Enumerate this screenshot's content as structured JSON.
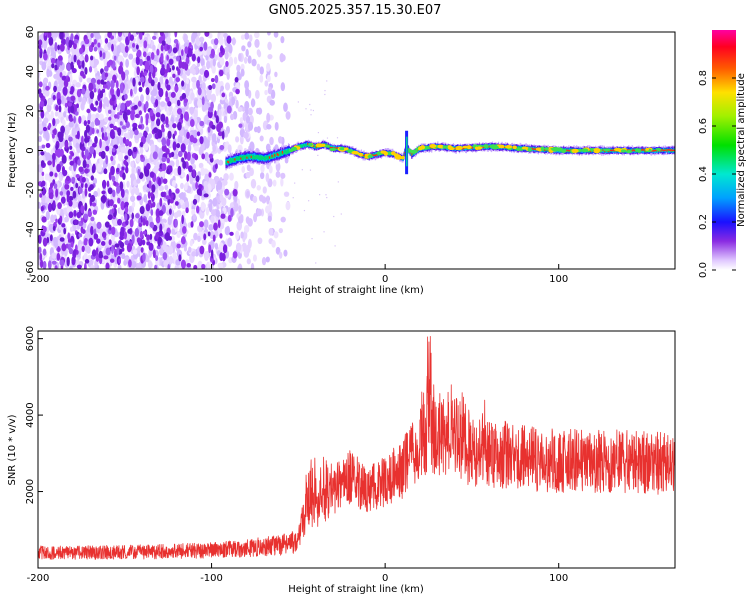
{
  "title": "GN05.2025.357.15.30.E07",
  "chart_data": [
    {
      "type": "heatmap",
      "title": "GN05.2025.357.15.30.E07",
      "xlabel": "Height of straight line (km)",
      "ylabel": "Frequency (Hz)",
      "xlim": [
        -200,
        167
      ],
      "ylim": [
        -60,
        60
      ],
      "x_ticks": [
        "-200",
        "-100",
        "0",
        "100"
      ],
      "y_ticks": [
        "60",
        "40",
        "20",
        "0",
        "-20",
        "-40",
        "-60"
      ],
      "colorbar": {
        "label": "Normalized spectral amplitude",
        "range": [
          0,
          1
        ],
        "ticks": [
          "0.0",
          "0.2",
          "0.4",
          "0.6",
          "0.8"
        ]
      },
      "noise_region_x": [
        -200,
        -55
      ],
      "signal_start_x": -92,
      "signal_track": [
        {
          "x": -92,
          "y": -6
        },
        {
          "x": -85,
          "y": -4
        },
        {
          "x": -78,
          "y": -3
        },
        {
          "x": -70,
          "y": -4
        },
        {
          "x": -62,
          "y": -2
        },
        {
          "x": -55,
          "y": 0
        },
        {
          "x": -50,
          "y": 2
        },
        {
          "x": -45,
          "y": 3
        },
        {
          "x": -40,
          "y": 2
        },
        {
          "x": -35,
          "y": 3
        },
        {
          "x": -30,
          "y": 1
        },
        {
          "x": -25,
          "y": 1
        },
        {
          "x": -20,
          "y": 0
        },
        {
          "x": -15,
          "y": -2
        },
        {
          "x": -10,
          "y": -3
        },
        {
          "x": -5,
          "y": -2
        },
        {
          "x": 0,
          "y": -1
        },
        {
          "x": 5,
          "y": -2
        },
        {
          "x": 10,
          "y": -4
        },
        {
          "x": 12,
          "y": 2
        },
        {
          "x": 15,
          "y": -2
        },
        {
          "x": 20,
          "y": 1
        },
        {
          "x": 30,
          "y": 2
        },
        {
          "x": 40,
          "y": 1
        },
        {
          "x": 60,
          "y": 2
        },
        {
          "x": 80,
          "y": 1
        },
        {
          "x": 100,
          "y": 0
        },
        {
          "x": 120,
          "y": 0
        },
        {
          "x": 140,
          "y": 0
        },
        {
          "x": 167,
          "y": 0
        }
      ]
    },
    {
      "type": "line",
      "xlabel": "Height of straight line (km)",
      "ylabel": "SNR (10 * v/v)",
      "xlim": [
        -200,
        167
      ],
      "ylim": [
        0,
        6200
      ],
      "x_ticks": [
        "-200",
        "-100",
        "0",
        "100"
      ],
      "y_ticks": [
        "2000",
        "4000",
        "6000"
      ],
      "color": "#e8312f",
      "series": [
        {
          "x": [
            -200,
            -180,
            -160,
            -140,
            -120,
            -100,
            -80,
            -60,
            -50,
            -45,
            -40,
            -35,
            -30,
            -20,
            -10,
            0,
            10,
            20,
            25,
            30,
            40,
            50,
            60,
            80,
            100,
            120,
            140,
            167
          ],
          "y": [
            400,
            400,
            410,
            420,
            440,
            460,
            520,
            600,
            700,
            1600,
            1500,
            1700,
            2000,
            2400,
            2000,
            2300,
            2600,
            3200,
            3600,
            3300,
            3500,
            3000,
            3000,
            2900,
            2800,
            2800,
            2800,
            2700
          ]
        }
      ]
    }
  ]
}
